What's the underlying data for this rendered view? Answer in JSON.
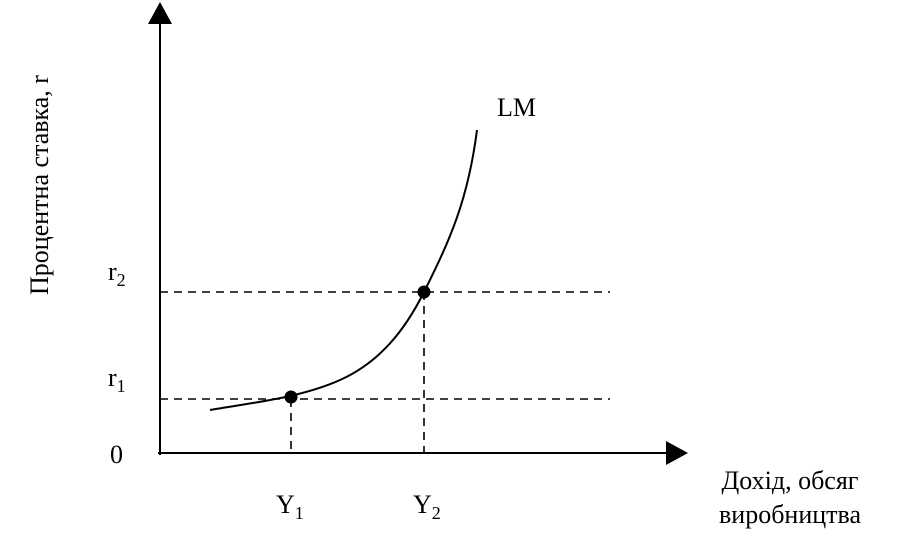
{
  "curve_label": "LM",
  "y_axis_label": "Процентна ставка, r",
  "x_axis_label": [
    "Дохід, обсяг",
    "виробництва"
  ],
  "origin_label": "0",
  "y_levels": [
    {
      "main": "r",
      "sub": "1"
    },
    {
      "main": "r",
      "sub": "2"
    }
  ],
  "x_levels": [
    {
      "main": "Y",
      "sub": "1"
    },
    {
      "main": "Y",
      "sub": "2"
    }
  ]
}
